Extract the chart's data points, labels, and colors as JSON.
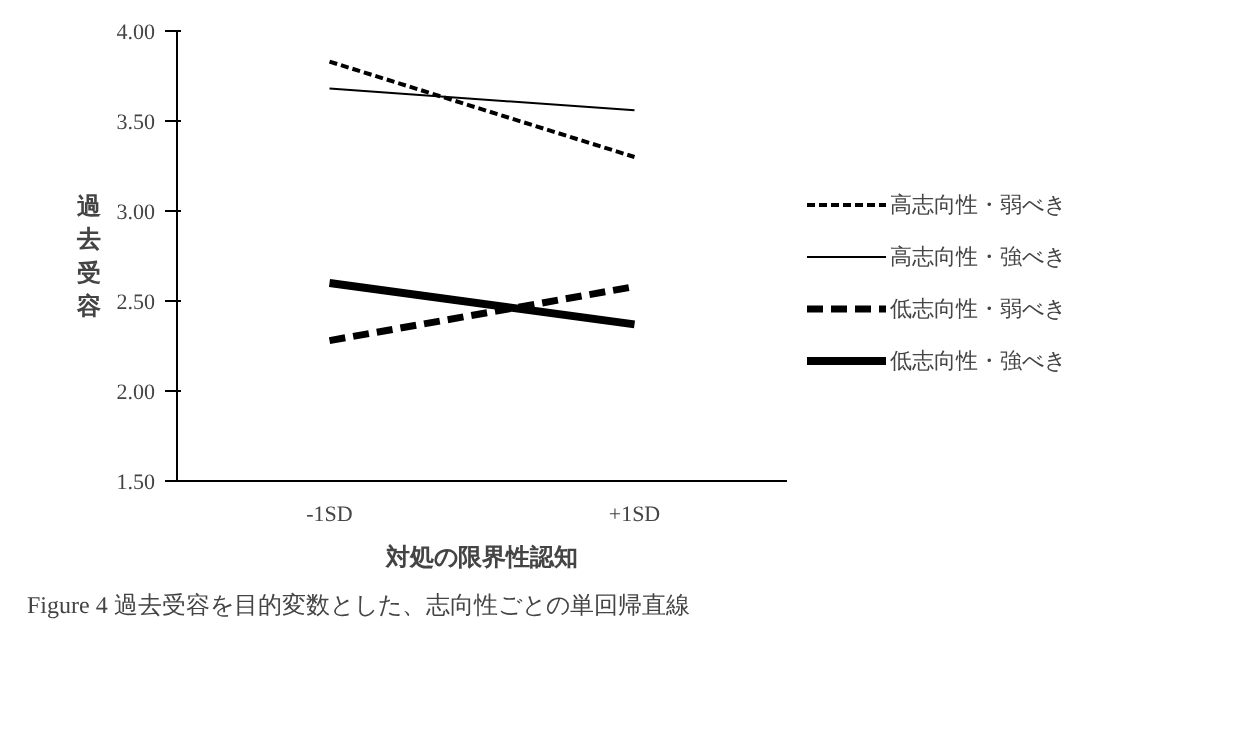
{
  "chart_data": {
    "type": "line",
    "xlabel": "対処の限界性認知",
    "ylabel": "過去受容",
    "categories": [
      "-1SD",
      "+1SD"
    ],
    "series": [
      {
        "name": "高志向性・弱べき",
        "color": "#000000",
        "values": [
          3.83,
          3.3
        ],
        "line_style": "dashed"
      },
      {
        "name": "高志向性・強べき",
        "color": "#000000",
        "values": [
          3.68,
          3.56
        ],
        "line_style": "solid"
      },
      {
        "name": "低志向性・弱べき",
        "color": "#000000",
        "values": [
          2.28,
          2.58
        ],
        "line_style": "dashed"
      },
      {
        "name": "低志向性・強べき",
        "color": "#000000",
        "values": [
          2.6,
          2.37
        ],
        "line_style": "solid"
      }
    ],
    "ylim": [
      1.5,
      4.0
    ],
    "yticks": [
      {
        "value": 1.5,
        "label": "1.50"
      },
      {
        "value": 2.0,
        "label": "2.00"
      },
      {
        "value": 2.5,
        "label": "2.50"
      },
      {
        "value": 3.0,
        "label": "3.00"
      },
      {
        "value": 3.5,
        "label": "3.50"
      },
      {
        "value": 4.0,
        "label": "4.00"
      }
    ],
    "grid": false,
    "legend": "right",
    "annotations": [
      "Figure 4  過去受容を目的変数とした、志向性ごとの単回帰直線"
    ]
  }
}
